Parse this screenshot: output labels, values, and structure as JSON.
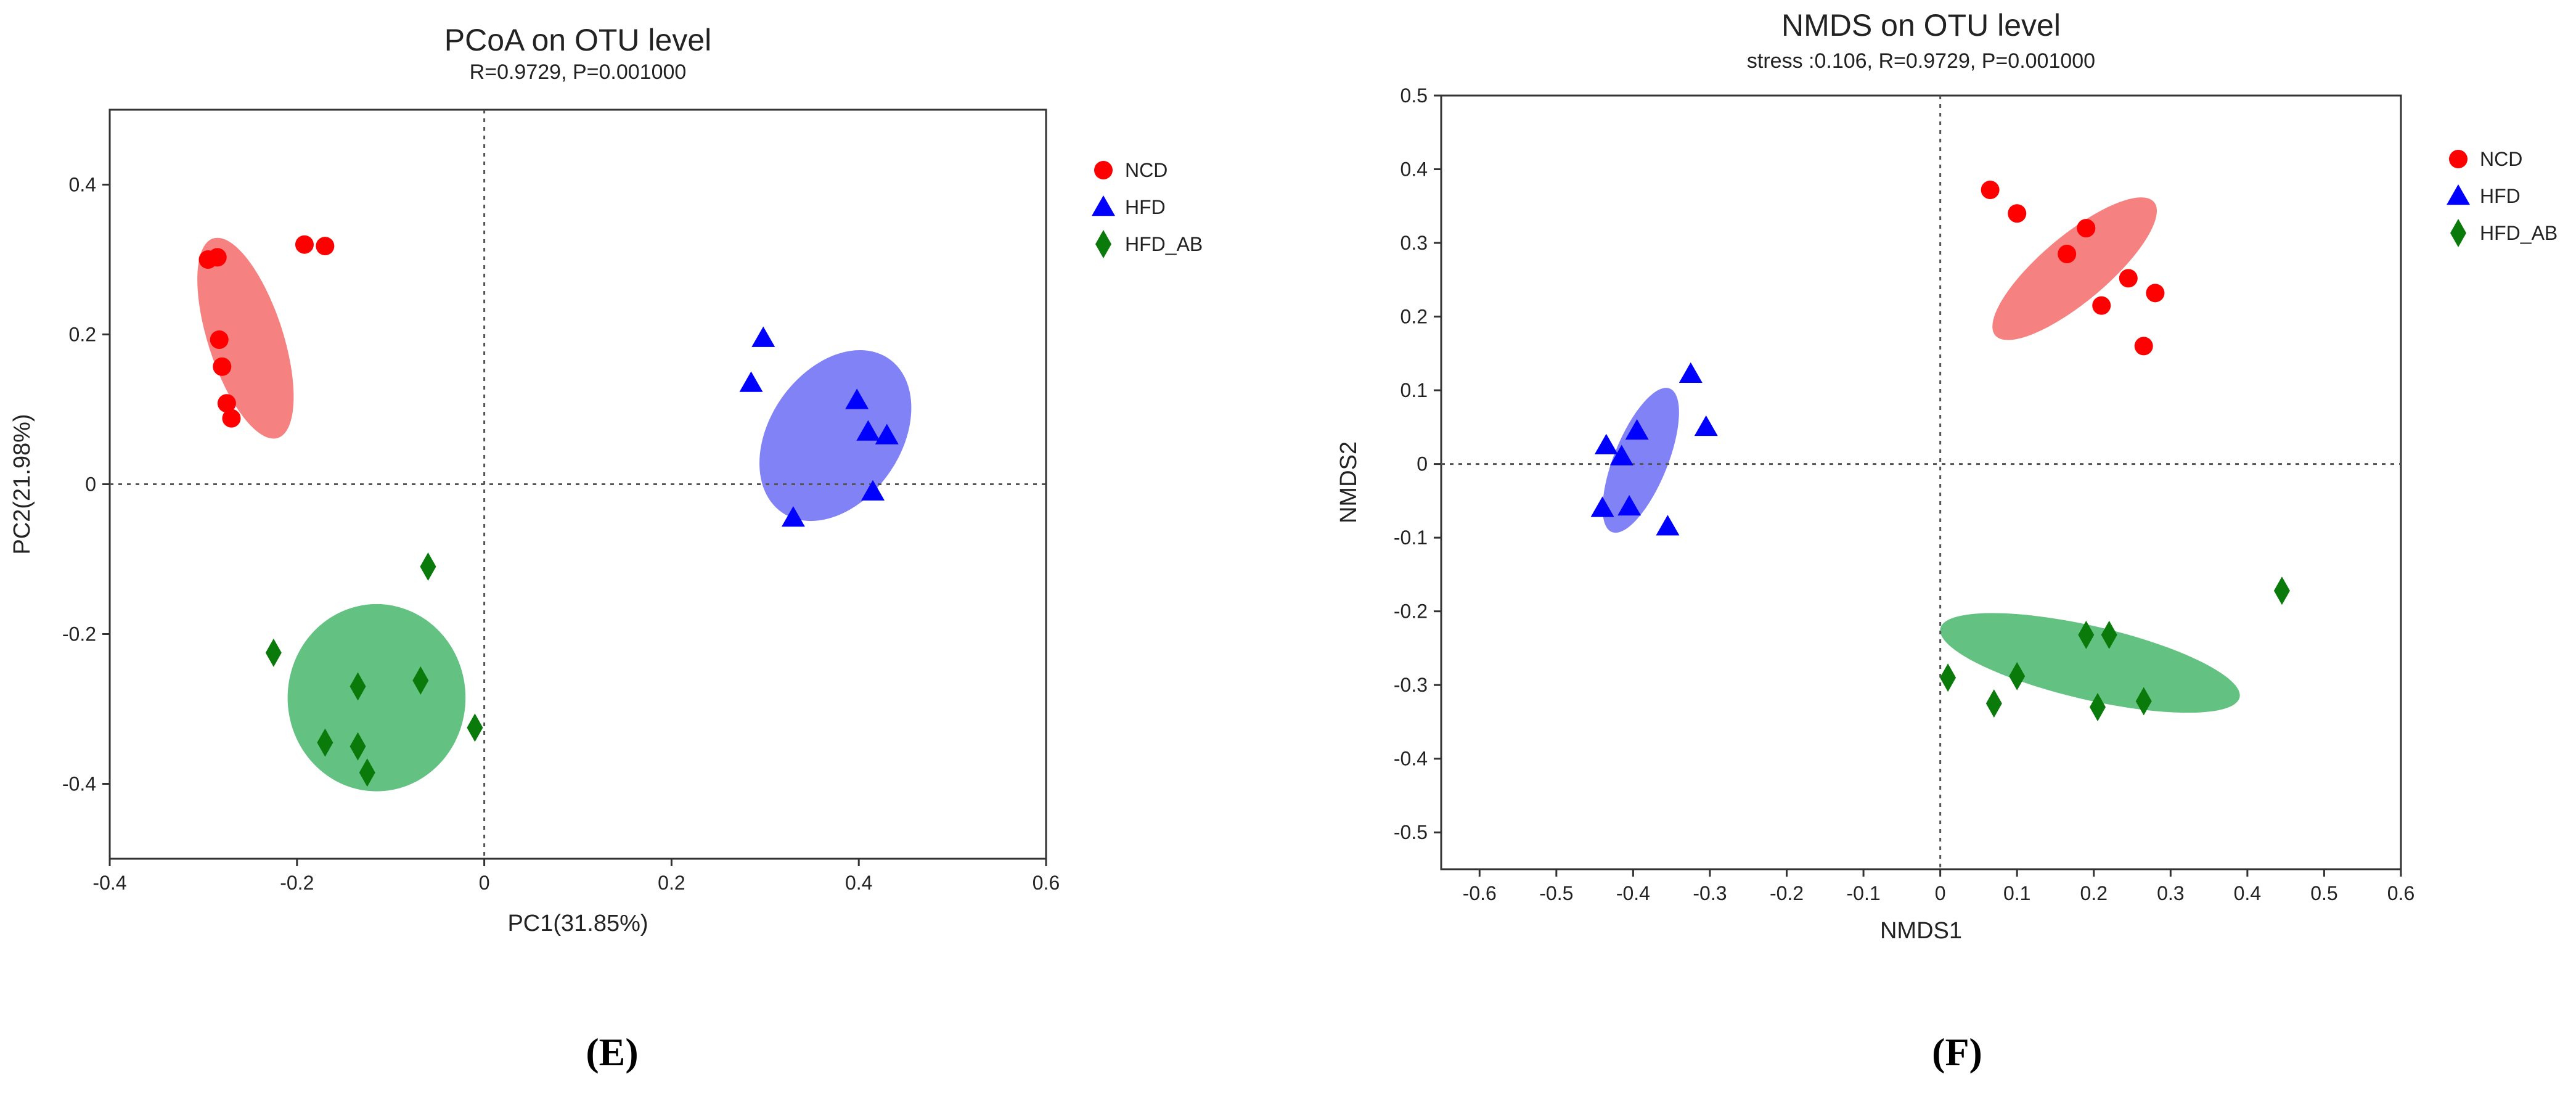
{
  "chart_data": [
    {
      "type": "scatter",
      "title": "PCoA on OTU level",
      "subtitle": "R=0.9729, P=0.001000",
      "xlabel": "PC1(31.85%)",
      "ylabel": "PC2(21.98%)",
      "xlim": [
        -0.4,
        0.6
      ],
      "ylim": [
        -0.5,
        0.5
      ],
      "xticks": [
        "-0.4",
        "-0.2",
        "0",
        "0.2",
        "0.4",
        "0.6"
      ],
      "yticks": [
        "-0.4",
        "-0.2",
        "0",
        "0.2",
        "0.4"
      ],
      "xtick_values": [
        -0.4,
        -0.2,
        0,
        0.2,
        0.4,
        0.6
      ],
      "ytick_values": [
        -0.4,
        -0.2,
        0,
        0.2,
        0.4
      ],
      "panel_label": "(E)",
      "legend_position": "right",
      "series": [
        {
          "name": "NCD",
          "marker": "circle",
          "color": "#ff0000",
          "ellipse_color": "#f47a7a",
          "points": [
            [
              -0.295,
              0.3
            ],
            [
              -0.285,
              0.303
            ],
            [
              -0.192,
              0.32
            ],
            [
              -0.17,
              0.318
            ],
            [
              -0.283,
              0.193
            ],
            [
              -0.28,
              0.157
            ],
            [
              -0.275,
              0.108
            ],
            [
              -0.27,
              0.088
            ]
          ],
          "ellipse": {
            "center": [
              -0.255,
              0.195
            ],
            "semi_axes": [
              0.04,
              0.14
            ],
            "angle_deg": -18
          }
        },
        {
          "name": "HFD",
          "marker": "triangle",
          "color": "#0000ff",
          "ellipse_color": "#7b7bf7",
          "points": [
            [
              0.298,
              0.195
            ],
            [
              0.285,
              0.135
            ],
            [
              0.398,
              0.112
            ],
            [
              0.41,
              0.07
            ],
            [
              0.43,
              0.065
            ],
            [
              0.415,
              -0.01
            ],
            [
              0.33,
              -0.045
            ]
          ],
          "ellipse": {
            "center": [
              0.375,
              0.065
            ],
            "semi_axes": [
              0.07,
              0.125
            ],
            "angle_deg": 35
          }
        },
        {
          "name": "HFD_AB",
          "marker": "diamond",
          "color": "#0a7a0a",
          "ellipse_color": "#5bbf7b",
          "points": [
            [
              -0.06,
              -0.11
            ],
            [
              -0.225,
              -0.225
            ],
            [
              -0.135,
              -0.27
            ],
            [
              -0.068,
              -0.262
            ],
            [
              -0.17,
              -0.345
            ],
            [
              -0.135,
              -0.35
            ],
            [
              -0.125,
              -0.385
            ],
            [
              -0.01,
              -0.325
            ]
          ],
          "ellipse": {
            "center": [
              -0.115,
              -0.285
            ],
            "semi_axes": [
              0.095,
              0.125
            ],
            "angle_deg": 0
          }
        }
      ]
    },
    {
      "type": "scatter",
      "title": "NMDS on OTU level",
      "subtitle": "stress :0.106, R=0.9729, P=0.001000",
      "xlabel": "NMDS1",
      "ylabel": "NMDS2",
      "xlim": [
        -0.65,
        0.6
      ],
      "ylim": [
        -0.55,
        0.5
      ],
      "xticks": [
        "-0.6",
        "-0.5",
        "-0.4",
        "-0.3",
        "-0.2",
        "-0.1",
        "0",
        "0.1",
        "0.2",
        "0.3",
        "0.4",
        "0.5",
        "0.6"
      ],
      "yticks": [
        "0.5",
        "0.4",
        "0.3",
        "0.2",
        "0.1",
        "0",
        "-0.1",
        "-0.2",
        "-0.3",
        "-0.4",
        "-0.5"
      ],
      "xtick_values": [
        -0.6,
        -0.5,
        -0.4,
        -0.3,
        -0.2,
        -0.1,
        0,
        0.1,
        0.2,
        0.3,
        0.4,
        0.5,
        0.6
      ],
      "ytick_values": [
        0.5,
        0.4,
        0.3,
        0.2,
        0.1,
        0,
        -0.1,
        -0.2,
        -0.3,
        -0.4,
        -0.5
      ],
      "panel_label": "(F)",
      "legend_position": "right",
      "series": [
        {
          "name": "NCD",
          "marker": "circle",
          "color": "#ff0000",
          "ellipse_color": "#f47a7a",
          "points": [
            [
              0.065,
              0.372
            ],
            [
              0.1,
              0.34
            ],
            [
              0.19,
              0.32
            ],
            [
              0.165,
              0.285
            ],
            [
              0.245,
              0.252
            ],
            [
              0.28,
              0.232
            ],
            [
              0.21,
              0.215
            ],
            [
              0.265,
              0.16
            ]
          ],
          "ellipse": {
            "center": [
              0.175,
              0.265
            ],
            "semi_axes": [
              0.135,
              0.045
            ],
            "angle_deg": -40
          }
        },
        {
          "name": "HFD",
          "marker": "triangle",
          "color": "#0000ff",
          "ellipse_color": "#7b7bf7",
          "points": [
            [
              -0.325,
              0.122
            ],
            [
              -0.305,
              0.05
            ],
            [
              -0.395,
              0.045
            ],
            [
              -0.435,
              0.025
            ],
            [
              -0.415,
              0.01
            ],
            [
              -0.44,
              -0.06
            ],
            [
              -0.405,
              -0.058
            ],
            [
              -0.355,
              -0.085
            ]
          ],
          "ellipse": {
            "center": [
              -0.39,
              0.005
            ],
            "semi_axes": [
              0.035,
              0.105
            ],
            "angle_deg": 22
          }
        },
        {
          "name": "HFD_AB",
          "marker": "diamond",
          "color": "#0a7a0a",
          "ellipse_color": "#5bbf7b",
          "points": [
            [
              0.445,
              -0.172
            ],
            [
              0.19,
              -0.232
            ],
            [
              0.22,
              -0.232
            ],
            [
              0.01,
              -0.29
            ],
            [
              0.1,
              -0.288
            ],
            [
              0.07,
              -0.325
            ],
            [
              0.205,
              -0.33
            ],
            [
              0.265,
              -0.322
            ]
          ],
          "ellipse": {
            "center": [
              0.195,
              -0.27
            ],
            "semi_axes": [
              0.2,
              0.05
            ],
            "angle_deg": 13
          }
        }
      ]
    }
  ]
}
